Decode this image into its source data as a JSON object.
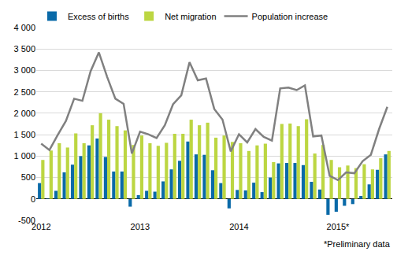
{
  "chart_data": {
    "type": "bar",
    "categories": [
      "2012",
      null,
      null,
      null,
      null,
      null,
      null,
      null,
      null,
      null,
      null,
      null,
      "2013",
      null,
      null,
      null,
      null,
      null,
      null,
      null,
      null,
      null,
      null,
      null,
      "2014",
      null,
      null,
      null,
      null,
      null,
      null,
      null,
      null,
      null,
      null,
      null,
      "2015*",
      null,
      null,
      null,
      null,
      null,
      null
    ],
    "series": [
      {
        "name": "Excess of births",
        "type": "bar",
        "color": "#0a6aa8",
        "values": [
          370,
          10,
          190,
          620,
          800,
          1000,
          1250,
          1410,
          980,
          640,
          640,
          -180,
          90,
          190,
          170,
          410,
          690,
          890,
          1340,
          1040,
          1030,
          670,
          370,
          -220,
          210,
          200,
          380,
          160,
          500,
          830,
          840,
          840,
          790,
          400,
          220,
          -370,
          -300,
          -160,
          -120,
          70,
          340,
          680,
          1040
        ]
      },
      {
        "name": "Net migration",
        "type": "bar",
        "color": "#bcd642",
        "values": [
          910,
          1130,
          1300,
          1200,
          1530,
          1300,
          1720,
          2000,
          1850,
          1700,
          1600,
          1260,
          1480,
          1300,
          1240,
          1310,
          1520,
          1520,
          1850,
          1720,
          1780,
          1430,
          1480,
          1330,
          1300,
          1120,
          1250,
          1290,
          860,
          1750,
          1760,
          1700,
          1860,
          1060,
          1260,
          910,
          740,
          780,
          720,
          810,
          690,
          950,
          1120
        ]
      },
      {
        "name": "Population increase",
        "type": "line",
        "color": "#808080",
        "values": [
          1290,
          1140,
          1490,
          1820,
          2340,
          2290,
          2980,
          3420,
          2850,
          2340,
          2220,
          1060,
          1570,
          1510,
          1420,
          1720,
          2210,
          2420,
          3190,
          2770,
          2810,
          2100,
          1850,
          1110,
          1510,
          1320,
          1630,
          1450,
          1360,
          2580,
          2600,
          2540,
          2650,
          1460,
          1480,
          540,
          440,
          620,
          600,
          880,
          1030,
          1630,
          2150
        ]
      }
    ],
    "ylim": [
      -500,
      4000
    ],
    "yticks": [
      -500,
      0,
      500,
      {
        "value": 1000,
        "label": "1 000"
      },
      {
        "value": 1500,
        "label": "1 500"
      },
      {
        "value": 2000,
        "label": "2 000"
      },
      {
        "value": 2500,
        "label": "2 500"
      },
      {
        "value": 3000,
        "label": "3 000"
      },
      {
        "value": 3500,
        "label": "3 500"
      },
      {
        "value": 4000,
        "label": "4 000"
      }
    ],
    "grid": true,
    "legend": "top",
    "annotation": "*Preliminary data"
  }
}
